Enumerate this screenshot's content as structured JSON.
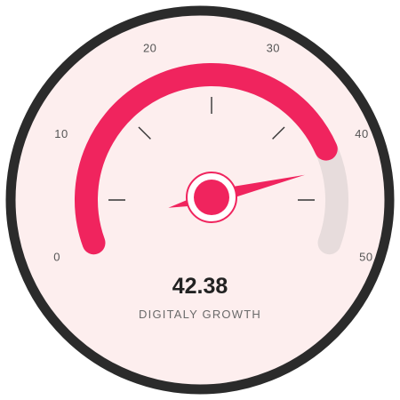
{
  "gauge": {
    "min": 0,
    "max": 50,
    "value": 42.38,
    "fill_until": 40,
    "value_display": "42.38",
    "caption": "DIGITALY GROWTH",
    "tick_labels": [
      "0",
      "10",
      "20",
      "30",
      "40",
      "50"
    ],
    "colors": {
      "accent": "#f0245e",
      "track": "#e7dcdc",
      "face": "#fdeeee",
      "rim": "#2b2b2b",
      "tick": "#333333"
    }
  }
}
